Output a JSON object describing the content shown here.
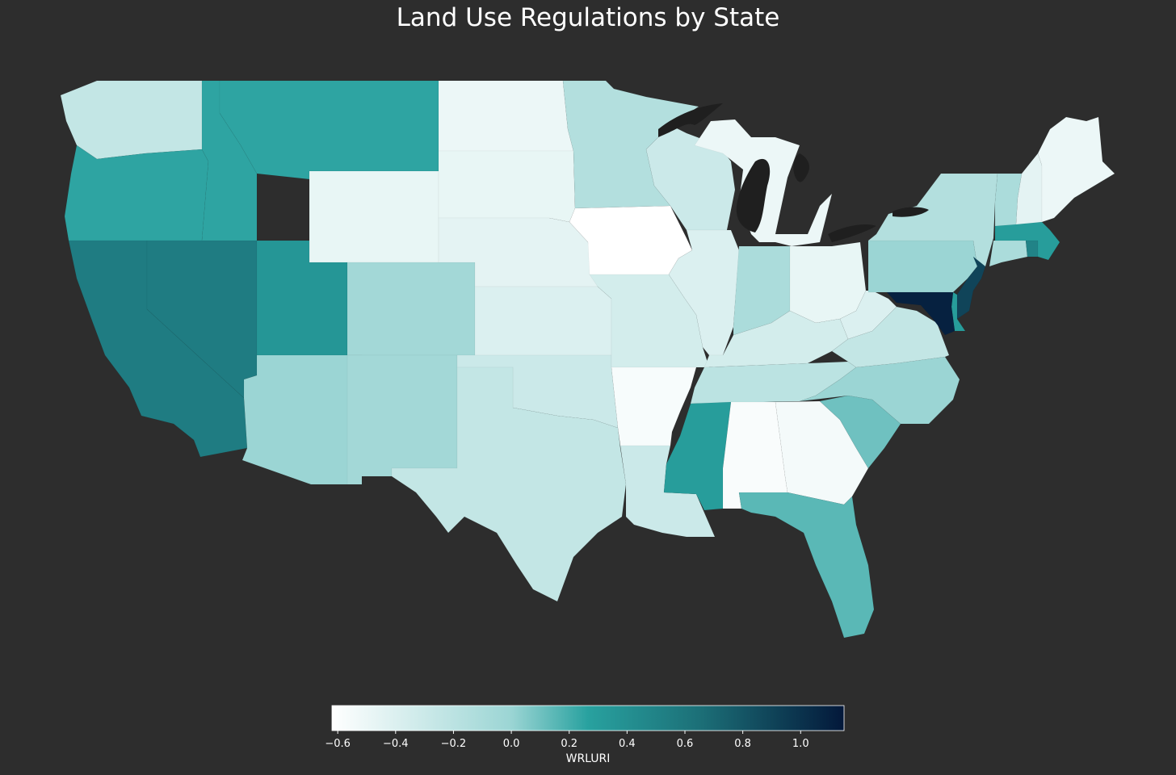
{
  "title": "Land Use Regulations by State",
  "colorbar": {
    "label": "WRLURI",
    "min": -0.62,
    "max": 1.15,
    "ticks": [
      "−0.6",
      "−0.4",
      "−0.2",
      "0.0",
      "0.2",
      "0.4",
      "0.6",
      "0.8",
      "1.0"
    ],
    "tick_values": [
      -0.6,
      -0.4,
      -0.2,
      0.0,
      0.2,
      0.4,
      0.6,
      0.8,
      1.0
    ],
    "colors": [
      "#ffffff",
      "#9bd5d4",
      "#28a19f",
      "#1c6f77",
      "#03183a"
    ]
  },
  "background_color": "#2d2d2d",
  "land_color": "#1f1f1f",
  "states": [
    {
      "abbr": "WA",
      "value": -0.25
    },
    {
      "abbr": "OR",
      "value": 0.25
    },
    {
      "abbr": "CA",
      "value": 0.55
    },
    {
      "abbr": "NV",
      "value": 0.55
    },
    {
      "abbr": "ID",
      "value": 0.25
    },
    {
      "abbr": "MT",
      "value": 0.25
    },
    {
      "abbr": "WY",
      "value": -0.48
    },
    {
      "abbr": "UT",
      "value": 0.35
    },
    {
      "abbr": "CO",
      "value": -0.05
    },
    {
      "abbr": "AZ",
      "value": 0.0
    },
    {
      "abbr": "NM",
      "value": -0.05
    },
    {
      "abbr": "ND",
      "value": -0.5
    },
    {
      "abbr": "SD",
      "value": -0.48
    },
    {
      "abbr": "NE",
      "value": -0.45
    },
    {
      "abbr": "KS",
      "value": -0.4
    },
    {
      "abbr": "OK",
      "value": -0.3
    },
    {
      "abbr": "TX",
      "value": -0.25
    },
    {
      "abbr": "MN",
      "value": -0.15
    },
    {
      "abbr": "IA",
      "value": -0.62
    },
    {
      "abbr": "MO",
      "value": -0.35
    },
    {
      "abbr": "AR",
      "value": -0.57
    },
    {
      "abbr": "LA",
      "value": -0.3
    },
    {
      "abbr": "WI",
      "value": -0.3
    },
    {
      "abbr": "IL",
      "value": -0.4
    },
    {
      "abbr": "MI",
      "value": -0.5
    },
    {
      "abbr": "IN",
      "value": -0.1
    },
    {
      "abbr": "OH",
      "value": -0.48
    },
    {
      "abbr": "KY",
      "value": -0.35
    },
    {
      "abbr": "TN",
      "value": -0.2
    },
    {
      "abbr": "MS",
      "value": 0.3
    },
    {
      "abbr": "AL",
      "value": -0.58
    },
    {
      "abbr": "GA",
      "value": -0.55
    },
    {
      "abbr": "FL",
      "value": 0.15
    },
    {
      "abbr": "SC",
      "value": 0.1
    },
    {
      "abbr": "NC",
      "value": 0.0
    },
    {
      "abbr": "VA",
      "value": -0.25
    },
    {
      "abbr": "WV",
      "value": -0.4
    },
    {
      "abbr": "PA",
      "value": 0.0
    },
    {
      "abbr": "NY",
      "value": -0.15
    },
    {
      "abbr": "NJ",
      "value": 0.9
    },
    {
      "abbr": "DE",
      "value": 0.3
    },
    {
      "abbr": "MD",
      "value": 1.1
    },
    {
      "abbr": "CT",
      "value": -0.1
    },
    {
      "abbr": "RI",
      "value": 0.5
    },
    {
      "abbr": "MA",
      "value": 0.3
    },
    {
      "abbr": "VT",
      "value": -0.1
    },
    {
      "abbr": "NH",
      "value": -0.45
    },
    {
      "abbr": "ME",
      "value": -0.5
    }
  ]
}
